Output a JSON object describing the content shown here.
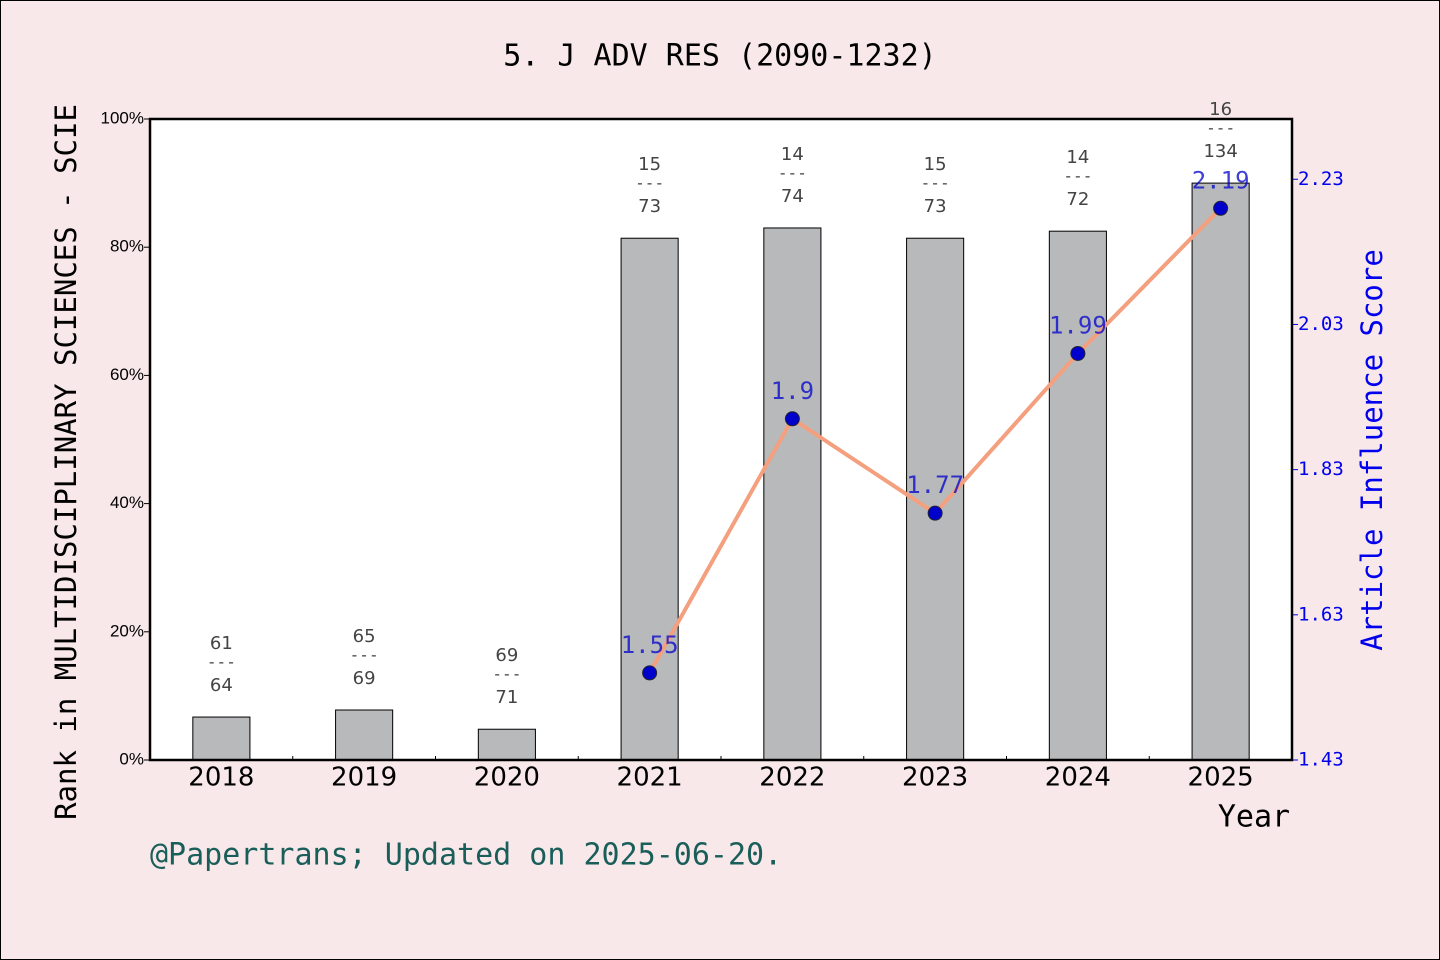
{
  "chart_data": {
    "type": "bar_line",
    "title": "5. J ADV RES (2090-1232)",
    "x_label": "Year",
    "y_label": "Rank in MULTIDISCIPLINARY SCIENCES - SCIE",
    "y2_label": "Article Influence Score",
    "footer": "@Papertrans; Updated on 2025-06-20.",
    "categories": [
      "2018",
      "2019",
      "2020",
      "2021",
      "2022",
      "2023",
      "2024",
      "2025"
    ],
    "series": [
      {
        "type": "bar",
        "color": "#b8b9bb",
        "values": [
          6.7,
          7.8,
          4.8,
          81.4,
          83.0,
          81.4,
          82.5,
          90.0
        ]
      },
      {
        "type": "line",
        "axis": "y2",
        "color": "#f4a07f",
        "marker_color": "#0000cc",
        "values": [
          null,
          null,
          null,
          1.55,
          1.9,
          1.77,
          1.99,
          2.19
        ]
      }
    ],
    "ranks": [
      "61",
      "65",
      "69",
      "15",
      "14",
      "15",
      "14",
      "16"
    ],
    "totals": [
      "64",
      "69",
      "71",
      "73",
      "74",
      "73",
      "72",
      "134"
    ],
    "separator": "---",
    "ylim": [
      0,
      100
    ],
    "yticks": [
      {
        "value": 0,
        "label": "0%"
      },
      {
        "value": 20,
        "label": "20%"
      },
      {
        "value": 40,
        "label": "40%"
      },
      {
        "value": 60,
        "label": "60%"
      },
      {
        "value": 80,
        "label": "80%"
      },
      {
        "value": 100,
        "label": "100%"
      }
    ],
    "y2lim": [
      1.43,
      2.313
    ],
    "y2ticks": [
      1.43,
      1.63,
      1.83,
      2.03,
      2.23
    ]
  }
}
